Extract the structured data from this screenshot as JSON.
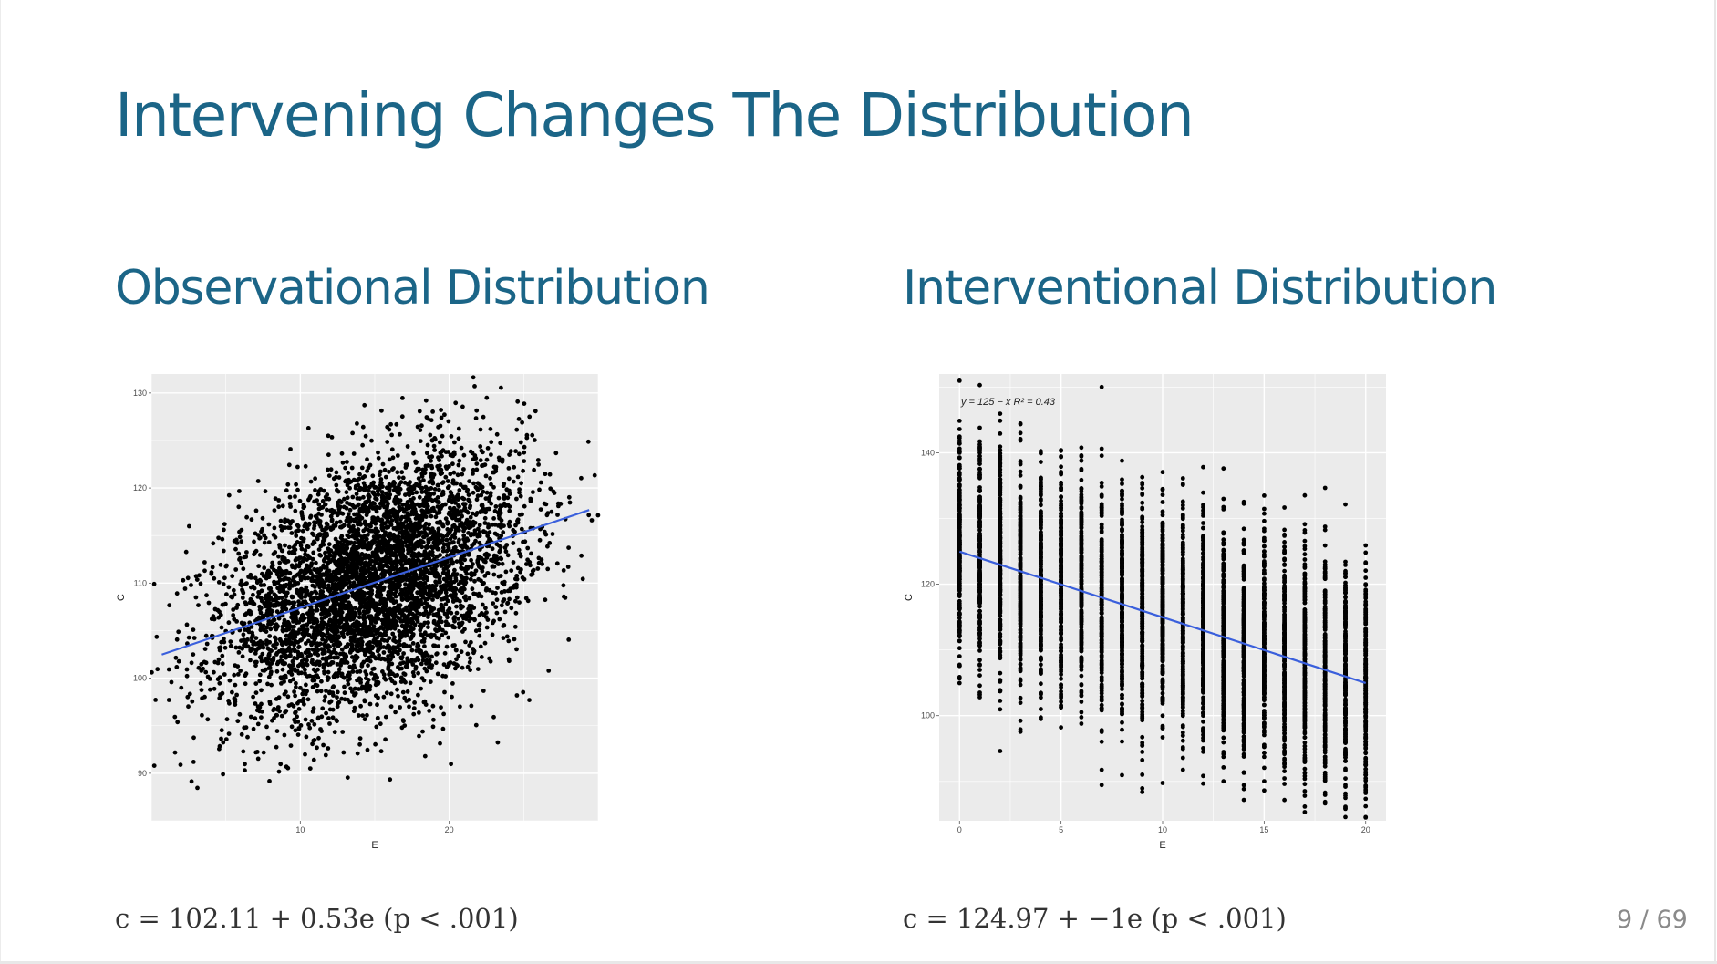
{
  "slide": {
    "title": "Intervening Changes The Distribution",
    "page_number": "9 / 69"
  },
  "left": {
    "heading": "Observational Distribution",
    "equation": "c = 102.11 + 0.53e (p < .001)"
  },
  "right": {
    "heading": "Interventional Distribution",
    "equation": "c = 124.97 + −1e (p < .001)",
    "annotation": "y = 125 − x      R² = 0.43"
  },
  "colors": {
    "title": "#1b6587",
    "panel_bg": "#ebebeb",
    "gridline": "#ffffff",
    "points": "#000000",
    "fit_line": "#3a5fdc"
  },
  "chart_data": [
    {
      "type": "scatter",
      "title": "",
      "xlabel": "E",
      "ylabel": "C",
      "xlim": [
        0,
        30
      ],
      "ylim": [
        85,
        132
      ],
      "xticks": [
        10,
        20
      ],
      "yticks": [
        90,
        100,
        110,
        120,
        130
      ],
      "grid": true,
      "fit": {
        "intercept": 102.11,
        "slope": 0.53
      },
      "point_cloud": {
        "x_mean": 15,
        "x_sd": 5,
        "y_sd": 6.2,
        "n": 5000
      }
    },
    {
      "type": "scatter",
      "title": "",
      "xlabel": "E",
      "ylabel": "C",
      "xlim": [
        -1,
        21
      ],
      "ylim": [
        84,
        152
      ],
      "xticks": [
        0,
        5,
        10,
        15,
        20
      ],
      "yticks": [
        100,
        120,
        140
      ],
      "grid": true,
      "x_values": [
        0,
        1,
        2,
        3,
        4,
        5,
        6,
        7,
        8,
        9,
        10,
        11,
        12,
        13,
        14,
        15,
        16,
        17,
        18,
        19,
        20
      ],
      "fit": {
        "intercept": 124.97,
        "slope": -1
      },
      "annotation": "y = 125 − x   R² = 0.43",
      "point_cloud": {
        "y_sd": 8.5,
        "n_per_x": 250
      }
    }
  ]
}
